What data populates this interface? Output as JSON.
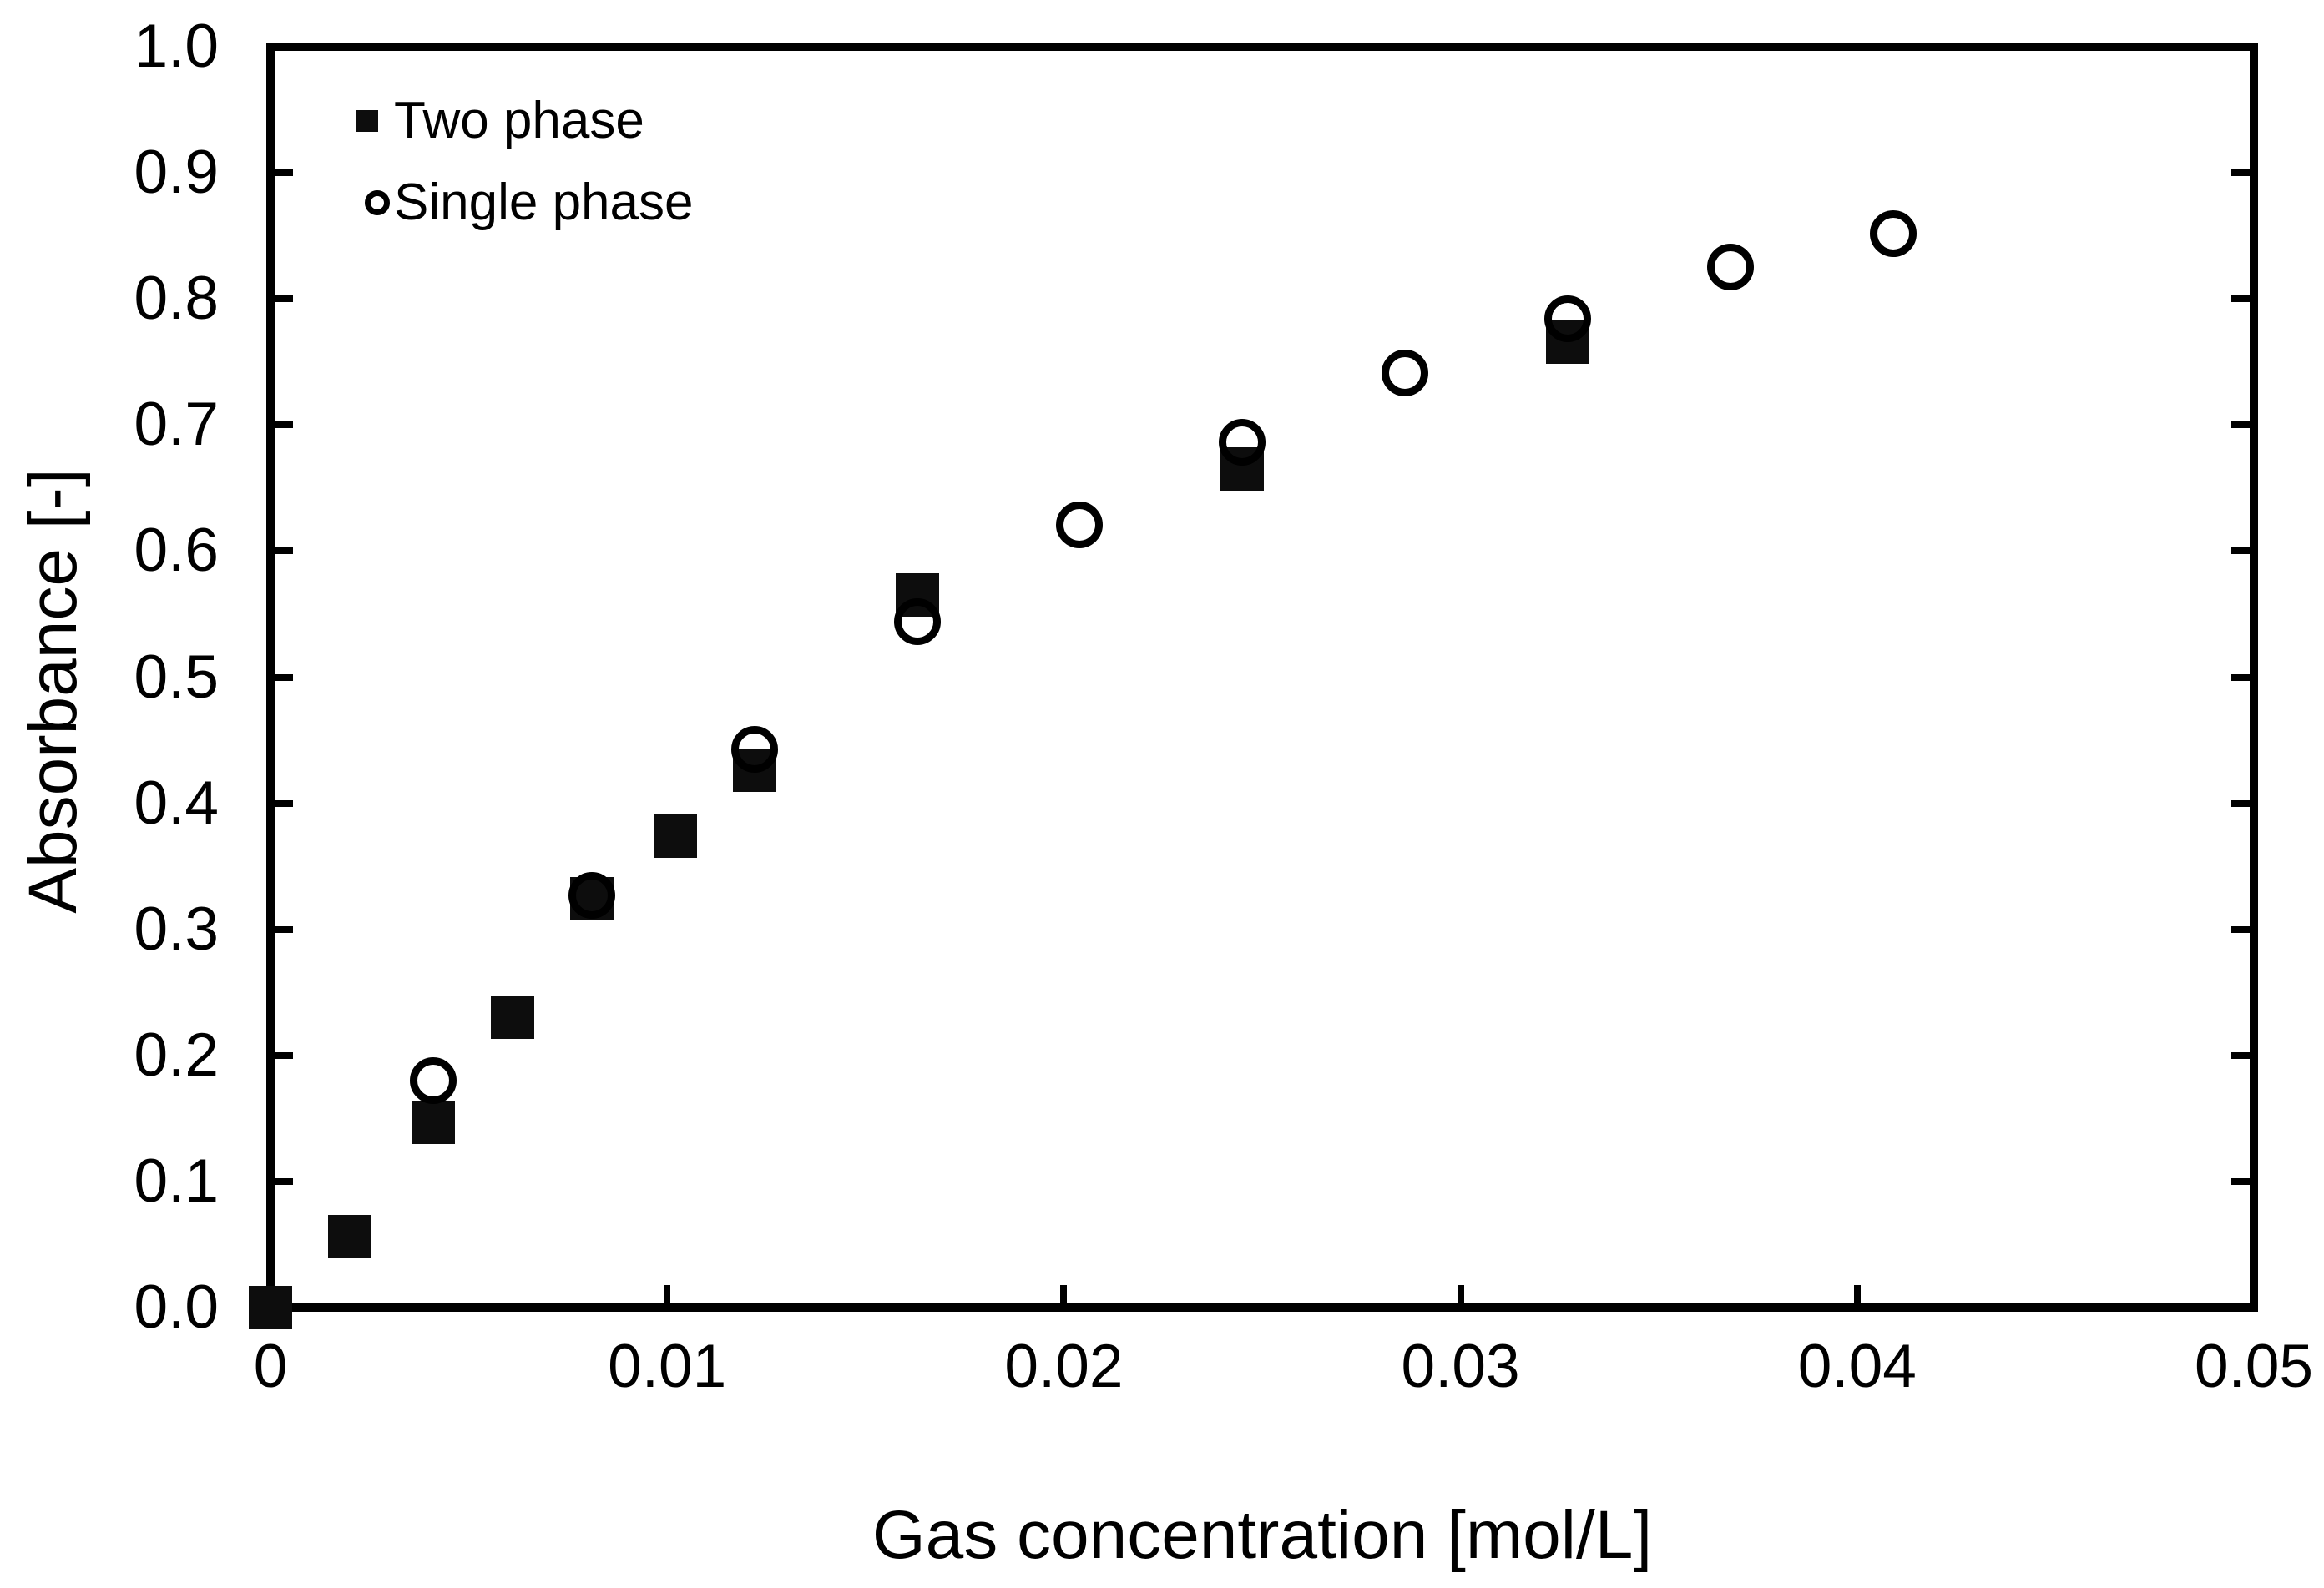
{
  "colors": {
    "foreground": "#000000",
    "marker_fill": "#0d0d0d",
    "background": "#ffffff"
  },
  "chart_data": {
    "type": "scatter",
    "title": "",
    "xlabel": "Gas concentration [mol/L]",
    "ylabel": "Absorbance [-]",
    "xlim": [
      0,
      0.05
    ],
    "ylim": [
      0.0,
      1.0
    ],
    "grid": false,
    "legend_position": "top-left-inside",
    "x_ticks": [
      0,
      0.01,
      0.02,
      0.03,
      0.04,
      0.05
    ],
    "x_tick_labels": [
      "0",
      "0.01",
      "0.02",
      "0.03",
      "0.04",
      "0.05"
    ],
    "y_ticks": [
      0.0,
      0.1,
      0.2,
      0.3,
      0.4,
      0.5,
      0.6,
      0.7,
      0.8,
      0.9,
      1.0
    ],
    "y_tick_labels": [
      "0.0",
      "0.1",
      "0.2",
      "0.3",
      "0.4",
      "0.5",
      "0.6",
      "0.7",
      "0.8",
      "0.9",
      "1.0"
    ],
    "series": [
      {
        "name": "Two phase",
        "marker": "filled-square",
        "color": "#000000",
        "points": [
          [
            0.0,
            0.0
          ],
          [
            0.002,
            0.056
          ],
          [
            0.0041,
            0.147
          ],
          [
            0.0061,
            0.23
          ],
          [
            0.0081,
            0.324
          ],
          [
            0.0102,
            0.374
          ],
          [
            0.0122,
            0.426
          ],
          [
            0.0163,
            0.565
          ],
          [
            0.0245,
            0.665
          ],
          [
            0.0327,
            0.766
          ]
        ]
      },
      {
        "name": "Single phase",
        "marker": "open-circle",
        "color": "#000000",
        "points": [
          [
            0.0041,
            0.18
          ],
          [
            0.0081,
            0.327
          ],
          [
            0.0122,
            0.443
          ],
          [
            0.0163,
            0.544
          ],
          [
            0.0204,
            0.621
          ],
          [
            0.0245,
            0.686
          ],
          [
            0.0286,
            0.741
          ],
          [
            0.0327,
            0.784
          ],
          [
            0.0368,
            0.825
          ],
          [
            0.0409,
            0.852
          ]
        ]
      }
    ]
  }
}
